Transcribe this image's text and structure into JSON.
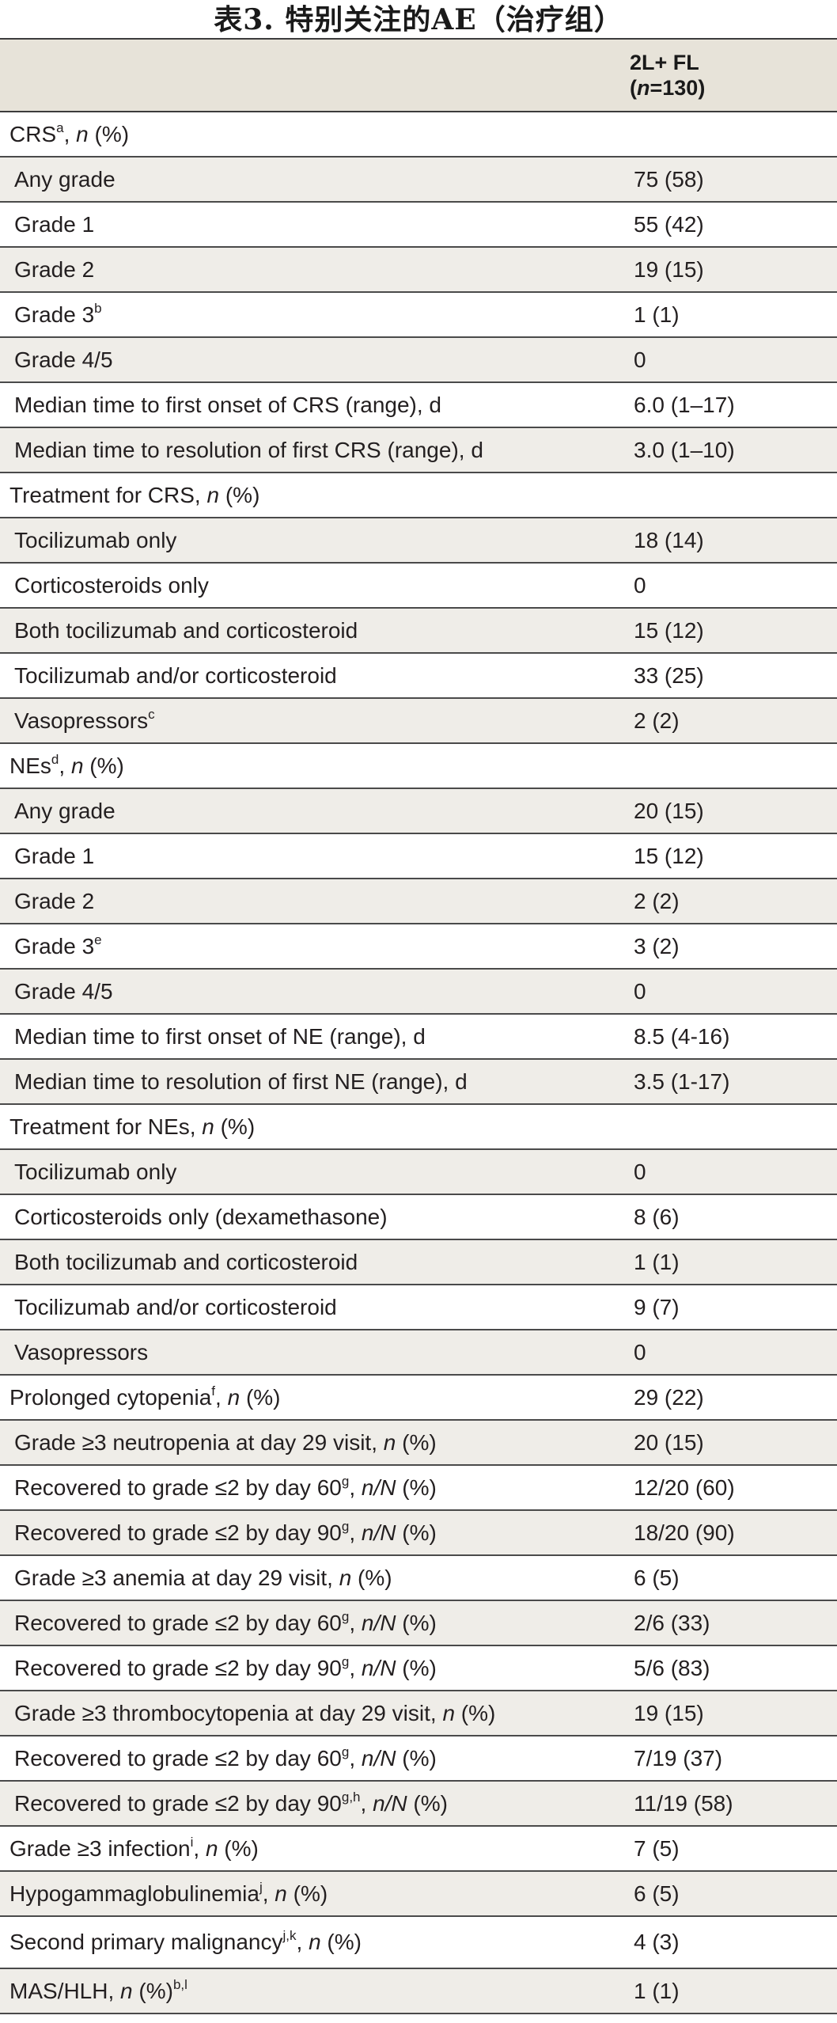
{
  "title": "表3. 特别关注的AE（治疗组）",
  "header": {
    "column_line1": "2L+ FL",
    "column_n_prefix": "(",
    "column_n_var": "n",
    "column_n_suffix": "=130)"
  },
  "rows": [
    {
      "type": "section",
      "shade": false,
      "parts": [
        {
          "t": "CRS"
        },
        {
          "sup": "a"
        },
        {
          "t": ", "
        },
        {
          "i": "n"
        },
        {
          "t": " (%)"
        }
      ],
      "value": ""
    },
    {
      "type": "item",
      "shade": true,
      "parts": [
        {
          "t": "Any grade"
        }
      ],
      "value": "75 (58)"
    },
    {
      "type": "item",
      "shade": false,
      "parts": [
        {
          "t": "Grade 1"
        }
      ],
      "value": "55 (42)"
    },
    {
      "type": "item",
      "shade": true,
      "parts": [
        {
          "t": "Grade 2"
        }
      ],
      "value": "19 (15)"
    },
    {
      "type": "item",
      "shade": false,
      "parts": [
        {
          "t": "Grade 3"
        },
        {
          "sup": "b"
        }
      ],
      "value": "1 (1)"
    },
    {
      "type": "item",
      "shade": true,
      "parts": [
        {
          "t": "Grade 4/5"
        }
      ],
      "value": "0"
    },
    {
      "type": "item",
      "shade": false,
      "parts": [
        {
          "t": "Median time to first onset of CRS (range), d"
        }
      ],
      "value": "6.0 (1–17)"
    },
    {
      "type": "item",
      "shade": true,
      "parts": [
        {
          "t": "Median time to resolution of first CRS (range), d"
        }
      ],
      "value": "3.0 (1–10)"
    },
    {
      "type": "section",
      "shade": false,
      "parts": [
        {
          "t": "Treatment for CRS, "
        },
        {
          "i": "n"
        },
        {
          "t": " (%)"
        }
      ],
      "value": ""
    },
    {
      "type": "item",
      "shade": true,
      "parts": [
        {
          "t": "Tocilizumab only"
        }
      ],
      "value": "18 (14)"
    },
    {
      "type": "item",
      "shade": false,
      "parts": [
        {
          "t": "Corticosteroids only"
        }
      ],
      "value": "0"
    },
    {
      "type": "item",
      "shade": true,
      "parts": [
        {
          "t": "Both tocilizumab and corticosteroid"
        }
      ],
      "value": "15 (12)"
    },
    {
      "type": "item",
      "shade": false,
      "parts": [
        {
          "t": "Tocilizumab and/or corticosteroid"
        }
      ],
      "value": "33 (25)"
    },
    {
      "type": "item",
      "shade": true,
      "parts": [
        {
          "t": "Vasopressors"
        },
        {
          "sup": "c"
        }
      ],
      "value": "2 (2)"
    },
    {
      "type": "section",
      "shade": false,
      "parts": [
        {
          "t": "NEs"
        },
        {
          "sup": "d"
        },
        {
          "t": ", "
        },
        {
          "i": "n"
        },
        {
          "t": " (%)"
        }
      ],
      "value": ""
    },
    {
      "type": "item",
      "shade": true,
      "parts": [
        {
          "t": "Any grade"
        }
      ],
      "value": "20 (15)"
    },
    {
      "type": "item",
      "shade": false,
      "parts": [
        {
          "t": "Grade 1"
        }
      ],
      "value": "15 (12)"
    },
    {
      "type": "item",
      "shade": true,
      "parts": [
        {
          "t": "Grade 2"
        }
      ],
      "value": "2 (2)"
    },
    {
      "type": "item",
      "shade": false,
      "parts": [
        {
          "t": "Grade 3"
        },
        {
          "sup": "e"
        }
      ],
      "value": "3 (2)"
    },
    {
      "type": "item",
      "shade": true,
      "parts": [
        {
          "t": "Grade 4/5"
        }
      ],
      "value": "0"
    },
    {
      "type": "item",
      "shade": false,
      "parts": [
        {
          "t": "Median time to first onset of NE (range), d"
        }
      ],
      "value": "8.5 (4-16)"
    },
    {
      "type": "item",
      "shade": true,
      "parts": [
        {
          "t": "Median time to resolution of first NE (range), d"
        }
      ],
      "value": "3.5 (1-17)"
    },
    {
      "type": "section",
      "shade": false,
      "parts": [
        {
          "t": "Treatment for NEs, "
        },
        {
          "i": "n"
        },
        {
          "t": " (%)"
        }
      ],
      "value": ""
    },
    {
      "type": "item",
      "shade": true,
      "parts": [
        {
          "t": "Tocilizumab only"
        }
      ],
      "value": "0"
    },
    {
      "type": "item",
      "shade": false,
      "parts": [
        {
          "t": "Corticosteroids only (dexamethasone)"
        }
      ],
      "value": "8 (6)"
    },
    {
      "type": "item",
      "shade": true,
      "parts": [
        {
          "t": "Both tocilizumab and corticosteroid"
        }
      ],
      "value": "1 (1)"
    },
    {
      "type": "item",
      "shade": false,
      "parts": [
        {
          "t": "Tocilizumab and/or corticosteroid"
        }
      ],
      "value": "9 (7)"
    },
    {
      "type": "item",
      "shade": true,
      "parts": [
        {
          "t": "Vasopressors"
        }
      ],
      "value": "0"
    },
    {
      "type": "section",
      "shade": false,
      "parts": [
        {
          "t": "Prolonged cytopenia"
        },
        {
          "sup": "f"
        },
        {
          "t": ", "
        },
        {
          "i": "n"
        },
        {
          "t": " (%)"
        }
      ],
      "value": "29 (22)"
    },
    {
      "type": "item",
      "shade": true,
      "parts": [
        {
          "t": "Grade ≥3 neutropenia at day 29 visit, "
        },
        {
          "i": "n"
        },
        {
          "t": " (%)"
        }
      ],
      "value": "20 (15)"
    },
    {
      "type": "item",
      "shade": false,
      "parts": [
        {
          "t": "Recovered to grade ≤2 by day 60"
        },
        {
          "sup": "g"
        },
        {
          "t": ", "
        },
        {
          "i": "n/N"
        },
        {
          "t": " (%)"
        }
      ],
      "value": "12/20 (60)"
    },
    {
      "type": "item",
      "shade": true,
      "parts": [
        {
          "t": "Recovered to grade ≤2 by day 90"
        },
        {
          "sup": "g"
        },
        {
          "t": ", "
        },
        {
          "i": "n/N"
        },
        {
          "t": " (%)"
        }
      ],
      "value": "18/20 (90)"
    },
    {
      "type": "item",
      "shade": false,
      "parts": [
        {
          "t": "Grade ≥3 anemia at day 29 visit, "
        },
        {
          "i": "n"
        },
        {
          "t": " (%)"
        }
      ],
      "value": "6 (5)"
    },
    {
      "type": "item",
      "shade": true,
      "parts": [
        {
          "t": "Recovered to grade ≤2 by day 60"
        },
        {
          "sup": "g"
        },
        {
          "t": ", "
        },
        {
          "i": "n/N"
        },
        {
          "t": " (%)"
        }
      ],
      "value": "2/6 (33)"
    },
    {
      "type": "item",
      "shade": false,
      "parts": [
        {
          "t": "Recovered to grade ≤2 by day 90"
        },
        {
          "sup": "g"
        },
        {
          "t": ", "
        },
        {
          "i": "n/N"
        },
        {
          "t": " (%)"
        }
      ],
      "value": "5/6 (83)"
    },
    {
      "type": "item",
      "shade": true,
      "parts": [
        {
          "t": "Grade ≥3 thrombocytopenia at day 29 visit, "
        },
        {
          "i": "n"
        },
        {
          "t": " (%)"
        }
      ],
      "value": "19 (15)"
    },
    {
      "type": "item",
      "shade": false,
      "parts": [
        {
          "t": "Recovered to grade ≤2 by day 60"
        },
        {
          "sup": "g"
        },
        {
          "t": ", "
        },
        {
          "i": "n/N"
        },
        {
          "t": " (%)"
        }
      ],
      "value": "7/19 (37)"
    },
    {
      "type": "item",
      "shade": true,
      "parts": [
        {
          "t": "Recovered to grade ≤2 by day 90"
        },
        {
          "sup": "g,h"
        },
        {
          "t": ", "
        },
        {
          "i": "n/N"
        },
        {
          "t": " (%)"
        }
      ],
      "value": "11/19 (58)"
    },
    {
      "type": "section",
      "shade": false,
      "parts": [
        {
          "t": "Grade ≥3 infection"
        },
        {
          "sup": "i"
        },
        {
          "t": ", "
        },
        {
          "i": "n"
        },
        {
          "t": " (%)"
        }
      ],
      "value": "7 (5)"
    },
    {
      "type": "section",
      "shade": true,
      "parts": [
        {
          "t": "Hypogammaglobulinemia"
        },
        {
          "sup": "j"
        },
        {
          "t": ", "
        },
        {
          "i": "n"
        },
        {
          "t": " (%)"
        }
      ],
      "value": "6 (5)"
    },
    {
      "type": "section",
      "shade": false,
      "tall": true,
      "parts": [
        {
          "t": "Second primary malignancy"
        },
        {
          "sup": "j,k"
        },
        {
          "t": ", "
        },
        {
          "i": "n"
        },
        {
          "t": " (%)"
        }
      ],
      "value": "4 (3)"
    },
    {
      "type": "section",
      "shade": true,
      "parts": [
        {
          "t": "MAS/HLH, "
        },
        {
          "i": "n"
        },
        {
          "t": " (%)"
        },
        {
          "sup": "b,l"
        }
      ],
      "value": "1 (1)"
    }
  ]
}
